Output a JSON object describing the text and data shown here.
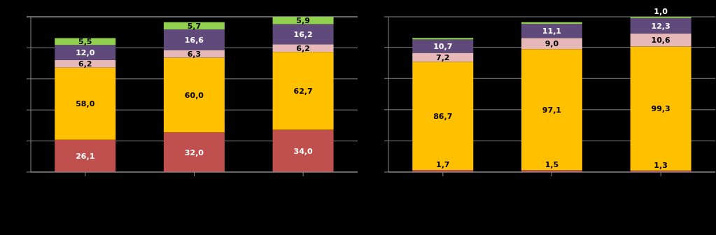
{
  "chart_data": [
    {
      "type": "bar",
      "stacked": true,
      "categories": [
        null,
        null,
        null
      ],
      "grid": "y",
      "series": [
        {
          "color": "#c0504d",
          "values": [
            26.1,
            32.0,
            34.0
          ],
          "value_labels": [
            "26,1",
            "32,0",
            "34,0"
          ]
        },
        {
          "color": "#ffc000",
          "values": [
            58.0,
            60.0,
            62.7
          ],
          "value_labels": [
            "58,0",
            "60,0",
            "62,7"
          ]
        },
        {
          "color": "#e6b9b8",
          "values": [
            6.2,
            6.3,
            6.2
          ],
          "value_labels": [
            "6,2",
            "6,3",
            "6,2"
          ]
        },
        {
          "color": "#604a7b",
          "values": [
            12.0,
            16.6,
            16.2
          ],
          "value_labels": [
            "12,0",
            "16,6",
            "16,2"
          ]
        },
        {
          "color": "#92d050",
          "values": [
            5.5,
            5.7,
            5.9
          ],
          "value_labels": [
            "5,5",
            "5,7",
            "5,9"
          ]
        }
      ]
    },
    {
      "type": "bar",
      "stacked": true,
      "categories": [
        null,
        null,
        null
      ],
      "grid": "y",
      "series": [
        {
          "color": "#c0504d",
          "values": [
            1.7,
            1.5,
            1.3
          ],
          "value_labels": [
            "1,7",
            "1,5",
            "1,3"
          ]
        },
        {
          "color": "#ffc000",
          "values": [
            86.7,
            97.1,
            99.3
          ],
          "value_labels": [
            "86,7",
            "97,1",
            "99,3"
          ]
        },
        {
          "color": "#e6b9b8",
          "values": [
            7.2,
            9.0,
            10.6
          ],
          "value_labels": [
            "7,2",
            "9,0",
            "10,6"
          ]
        },
        {
          "color": "#604a7b",
          "values": [
            10.7,
            11.1,
            12.3
          ],
          "value_labels": [
            "10,7",
            "11,1",
            "12,3"
          ]
        },
        {
          "color": "#92d050",
          "values": [
            1.2,
            1.5,
            1.0
          ],
          "value_labels": [
            null,
            null,
            "1,0"
          ]
        }
      ]
    }
  ]
}
